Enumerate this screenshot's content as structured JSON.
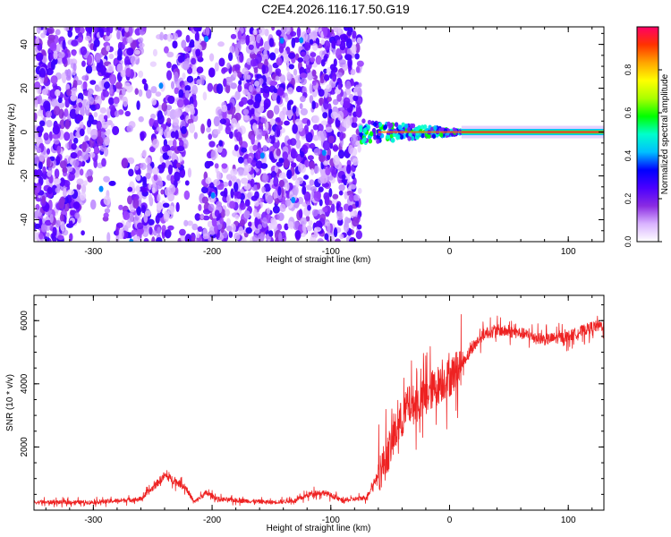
{
  "title": "C2E4.2026.116.17.50.G19",
  "chart_data": [
    {
      "type": "heatmap",
      "xlabel": "Height of straight line (km)",
      "ylabel": "Frequency (Hz)",
      "xlim": [
        -350,
        130
      ],
      "ylim": [
        -50,
        48
      ],
      "xticks": [
        -300,
        -200,
        -100,
        0,
        100
      ],
      "yticks": [
        -40,
        -20,
        0,
        20,
        40
      ],
      "colorbar": {
        "label": "Normalized spectral amplitude",
        "range": [
          0,
          1
        ],
        "ticks": [
          "0.0",
          "0.2",
          "0.4",
          "0.6",
          "0.8"
        ],
        "colors": [
          "#ffffff",
          "#d9b3ff",
          "#8a2be2",
          "#4b00ff",
          "#0000ff",
          "#00bfff",
          "#00ffcc",
          "#00ff00",
          "#aaff00",
          "#ffff00",
          "#ffa500",
          "#ff3300",
          "#ff0066"
        ]
      },
      "regions": [
        {
          "x_range": [
            -350,
            -75
          ],
          "description": "broadband noise",
          "amplitude": 0.15
        },
        {
          "x_range": [
            -75,
            10
          ],
          "frequency": 0,
          "description": "converging tone",
          "amplitude": 0.5
        },
        {
          "x_range": [
            10,
            130
          ],
          "frequency": 0,
          "description": "steady tone",
          "amplitude": 0.9
        }
      ]
    },
    {
      "type": "line",
      "xlabel": "Height of straight line (km)",
      "ylabel": "SNR (10 * v/v)",
      "xlim": [
        -350,
        130
      ],
      "ylim": [
        0,
        6800
      ],
      "xticks": [
        -300,
        -200,
        -100,
        0,
        100
      ],
      "yticks": [
        2000,
        4000,
        6000
      ],
      "series": [
        {
          "name": "SNR",
          "color": "#ee2222",
          "x": [
            -350,
            -300,
            -260,
            -250,
            -240,
            -230,
            -222,
            -215,
            -205,
            -195,
            -175,
            -150,
            -130,
            -115,
            -105,
            -90,
            -70,
            -55,
            -45,
            -35,
            -25,
            -15,
            -5,
            0,
            10,
            20,
            30,
            40,
            60,
            80,
            100,
            120,
            130
          ],
          "y": [
            250,
            250,
            350,
            700,
            1100,
            900,
            700,
            250,
            550,
            350,
            300,
            250,
            300,
            550,
            550,
            300,
            400,
            1500,
            2500,
            3300,
            3400,
            3800,
            4100,
            4200,
            4600,
            5200,
            5600,
            5700,
            5600,
            5400,
            5500,
            5800,
            5850
          ]
        }
      ]
    }
  ]
}
